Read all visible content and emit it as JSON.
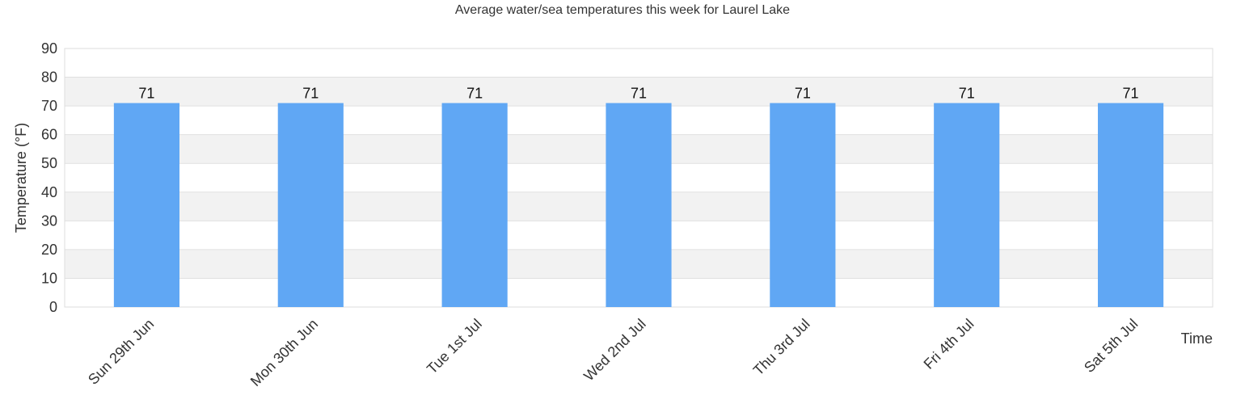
{
  "chart_data": {
    "type": "bar",
    "title": "Average water/sea temperatures this week for Laurel Lake",
    "xlabel": "Time",
    "ylabel": "Temperature (°F)",
    "categories": [
      "Sun 29th Jun",
      "Mon 30th Jun",
      "Tue 1st Jul",
      "Wed 2nd Jul",
      "Thu 3rd Jul",
      "Fri 4th Jul",
      "Sat 5th Jul"
    ],
    "values": [
      71,
      71,
      71,
      71,
      71,
      71,
      71
    ],
    "ylim": [
      0,
      90
    ],
    "yticks": [
      "0",
      "10",
      "20",
      "30",
      "40",
      "50",
      "60",
      "70",
      "80",
      "90"
    ],
    "data_labels": [
      "71",
      "71",
      "71",
      "71",
      "71",
      "71",
      "71"
    ],
    "bar_color": "#60a7f4",
    "band_color": "#f2f2f2",
    "grid": true,
    "legend": "none"
  }
}
